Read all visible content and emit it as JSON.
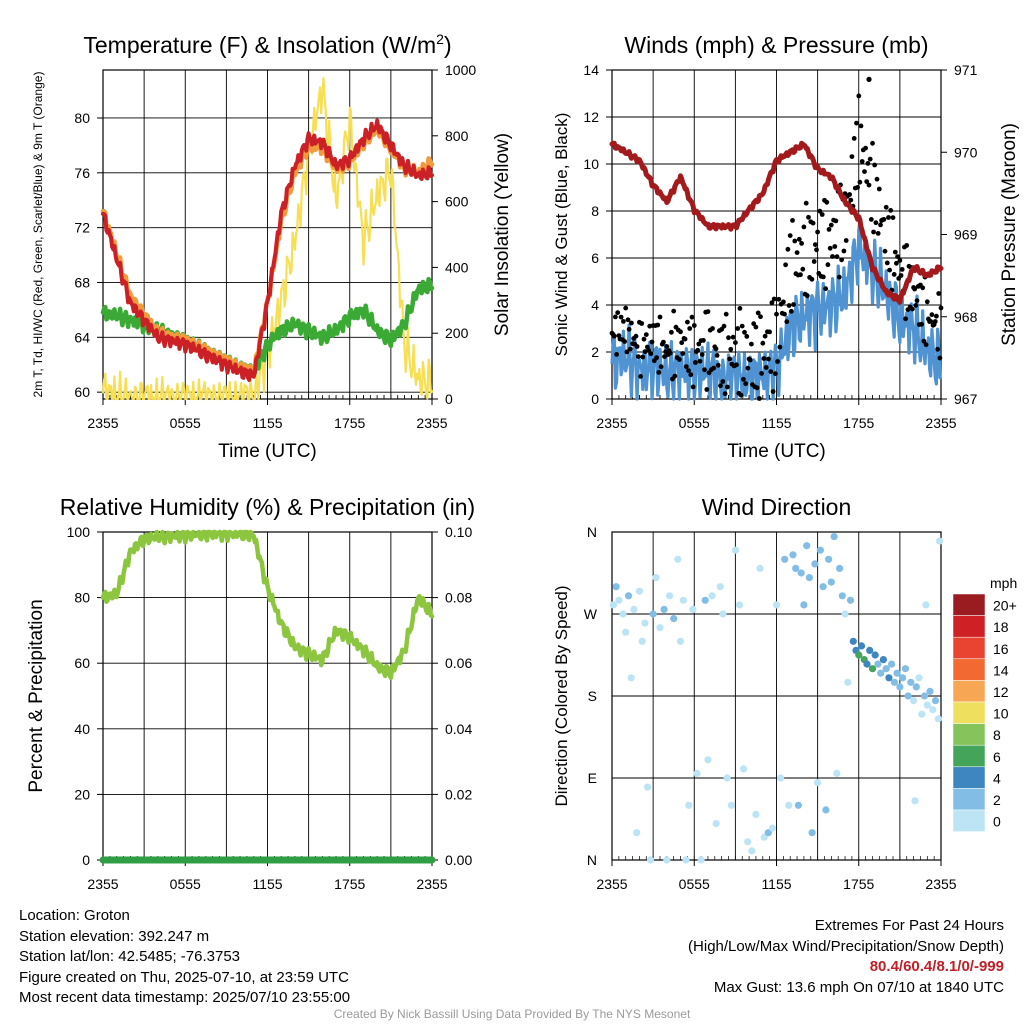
{
  "colors": {
    "temperature": "#cc2027",
    "dewpoint": "#3aaa35",
    "heat_index": "#f37021",
    "temperature_9m": "#f39a3c",
    "insolation": "#f7df55",
    "wind": "#4f93d2",
    "gust": "#000000",
    "pressure": "#a31a1d",
    "humidity": "#8cc63f",
    "precipitation": "#2f9e44",
    "extremes_text": "#c01f28",
    "credit_text": "#9a9a9a"
  },
  "chart_data": [
    {
      "type": "line",
      "title": "Temperature (F) & Insolation (W/m²)",
      "xlabel": "Time (UTC)",
      "ylabel_left": "2m T, Td, HI/WC (Red, Green, Scarlet/Blue) & 9m T (Orange)",
      "ylabel_right": "Solar Insolation (Yellow)",
      "x_ticks": [
        "2355",
        "0555",
        "1155",
        "1755",
        "2355"
      ],
      "y_ticks_left": [
        "60",
        "64",
        "68",
        "72",
        "76",
        "80"
      ],
      "y_ticks_right": [
        "0",
        "200",
        "400",
        "600",
        "800",
        "1000"
      ],
      "ylim_left": [
        59.5,
        83.5
      ],
      "ylim_right": [
        0,
        1000
      ],
      "grid": true,
      "x_hours": [
        0,
        2,
        4,
        6,
        8,
        10,
        11,
        12,
        13,
        14,
        15,
        16,
        17,
        18,
        19,
        20,
        21,
        22,
        23,
        24
      ],
      "series": [
        {
          "key": "temp_2m",
          "axis": "left",
          "values": [
            73,
            66.5,
            64,
            63.5,
            62.5,
            61.5,
            61.2,
            66.5,
            73,
            76.5,
            78.5,
            78.2,
            76.5,
            77,
            78.5,
            79.5,
            78,
            76.5,
            75.8,
            76
          ]
        },
        {
          "key": "temp_9m",
          "axis": "left",
          "values": [
            73.2,
            67,
            64.3,
            63.8,
            62.8,
            61.8,
            61.5,
            66.5,
            72.5,
            76,
            78,
            77.8,
            76.3,
            76.8,
            78.2,
            79.2,
            77.8,
            76.3,
            76,
            76.8
          ]
        },
        {
          "key": "dewpoint",
          "axis": "left",
          "values": [
            65.8,
            65.3,
            64.5,
            63.8,
            62.8,
            61.8,
            61.5,
            63.5,
            64.5,
            65,
            64.5,
            64,
            64.5,
            65.5,
            66,
            64.5,
            63.8,
            65,
            67.5,
            67.8
          ]
        },
        {
          "key": "insolation",
          "axis": "right",
          "values": [
            20,
            0,
            0,
            0,
            0,
            0,
            10,
            140,
            300,
            480,
            750,
            950,
            600,
            850,
            480,
            620,
            700,
            160,
            60,
            50
          ]
        }
      ]
    },
    {
      "type": "line",
      "title": "Winds (mph) & Pressure (mb)",
      "xlabel": "Time (UTC)",
      "ylabel_left": "Sonic Wind & Gust (Blue, Black)",
      "ylabel_right": "Station Pressure (Maroon)",
      "x_ticks": [
        "2355",
        "0555",
        "1155",
        "1755",
        "2355"
      ],
      "y_ticks_left": [
        "0",
        "2",
        "4",
        "6",
        "8",
        "10",
        "12",
        "14"
      ],
      "y_ticks_right": [
        "967",
        "968",
        "969",
        "970",
        "971"
      ],
      "ylim_left": [
        0,
        14
      ],
      "ylim_right": [
        967,
        971
      ],
      "grid": true,
      "x_hours": [
        0,
        1,
        2,
        3,
        4,
        5,
        6,
        7,
        8,
        9,
        10,
        11,
        12,
        13,
        14,
        15,
        16,
        17,
        18,
        19,
        20,
        21,
        22,
        23,
        24
      ],
      "series": [
        {
          "key": "wind",
          "axis": "left",
          "values": [
            1.5,
            1.8,
            1.2,
            1.5,
            1.0,
            1.3,
            1.1,
            1.2,
            0.8,
            1.0,
            0.8,
            1.0,
            1.3,
            3.0,
            3.5,
            3.8,
            4.0,
            4.5,
            6.5,
            5.5,
            4.5,
            3.5,
            3.0,
            2.0,
            1.5
          ]
        },
        {
          "key": "gust",
          "axis": "left",
          "values": [
            2.8,
            3.0,
            2.2,
            2.5,
            2.0,
            2.4,
            2.0,
            2.2,
            1.8,
            2.0,
            1.7,
            2.0,
            2.5,
            5.5,
            6.2,
            6.5,
            6.8,
            7.5,
            11.0,
            9.0,
            7.0,
            5.5,
            4.5,
            3.5,
            3.0
          ]
        },
        {
          "key": "pressure",
          "axis": "right",
          "values": [
            970.1,
            970.0,
            969.9,
            969.6,
            969.4,
            969.7,
            969.3,
            969.1,
            969.1,
            969.1,
            969.3,
            969.5,
            969.9,
            970.0,
            970.1,
            969.8,
            969.7,
            969.4,
            969.2,
            968.6,
            968.3,
            968.2,
            968.6,
            968.5,
            968.6
          ]
        }
      ],
      "max_gust_point": {
        "hour": 18.75,
        "value": 13.6
      }
    },
    {
      "type": "line",
      "title": "Relative Humidity (%) & Precipitation (in)",
      "ylabel": "Percent & Precipitation",
      "x_ticks": [
        "2355",
        "0555",
        "1155",
        "1755",
        "2355"
      ],
      "y_ticks_left": [
        "0",
        "20",
        "40",
        "60",
        "80",
        "100"
      ],
      "y_ticks_right": [
        "0.00",
        "0.02",
        "0.04",
        "0.06",
        "0.08",
        "0.10"
      ],
      "ylim_left": [
        0,
        100
      ],
      "ylim_right": [
        0,
        0.1
      ],
      "grid": true,
      "x_hours": [
        0,
        1,
        2,
        3,
        4,
        6,
        8,
        10,
        11,
        12,
        13,
        14,
        15,
        16,
        17,
        18,
        19,
        20,
        21,
        22,
        23,
        24
      ],
      "series": [
        {
          "key": "humidity",
          "axis": "left",
          "values": [
            80,
            81,
            94,
            98,
            98.5,
            99,
            99.5,
            99.5,
            99,
            83,
            72,
            65,
            63,
            61,
            70,
            68,
            64,
            59,
            57,
            64,
            80,
            75
          ]
        },
        {
          "key": "precipitation",
          "axis": "right",
          "values": [
            0,
            0,
            0,
            0,
            0,
            0,
            0,
            0,
            0,
            0,
            0,
            0,
            0,
            0,
            0,
            0,
            0,
            0,
            0,
            0,
            0,
            0
          ]
        }
      ]
    },
    {
      "type": "scatter",
      "title": "Wind Direction",
      "ylabel": "Direction (Colored By Speed)",
      "x_ticks": [
        "2355",
        "0555",
        "1155",
        "1755",
        "2355"
      ],
      "y_ticks": [
        "N",
        "E",
        "S",
        "W",
        "N"
      ],
      "ylim": [
        0,
        360
      ],
      "grid": true,
      "legend": {
        "title": "mph",
        "labels": [
          "20+",
          "18",
          "16",
          "14",
          "12",
          "10",
          "8",
          "6",
          "4",
          "2",
          "0"
        ],
        "colors": [
          "#9b1c20",
          "#cf2026",
          "#e94432",
          "#f26a32",
          "#f7a653",
          "#eee05e",
          "#86c35a",
          "#43a45a",
          "#3e86c0",
          "#82bde6",
          "#bde4f5"
        ],
        "placement": "right"
      },
      "points": [
        {
          "h": 0.1,
          "d": 280,
          "s": 1.5
        },
        {
          "h": 0.3,
          "d": 300,
          "s": 2.5
        },
        {
          "h": 0.5,
          "d": 285,
          "s": 1.8
        },
        {
          "h": 0.8,
          "d": 270,
          "s": 1
        },
        {
          "h": 1,
          "d": 250,
          "s": 0.8
        },
        {
          "h": 1.2,
          "d": 290,
          "s": 2
        },
        {
          "h": 1.4,
          "d": 200,
          "s": 0.5
        },
        {
          "h": 1.6,
          "d": 275,
          "s": 1.2
        },
        {
          "h": 1.8,
          "d": 30,
          "s": 0.6
        },
        {
          "h": 2,
          "d": 295,
          "s": 1.5
        },
        {
          "h": 2.2,
          "d": 240,
          "s": 1
        },
        {
          "h": 2.4,
          "d": 260,
          "s": 1.8
        },
        {
          "h": 2.6,
          "d": 80,
          "s": 1.5
        },
        {
          "h": 2.8,
          "d": 0,
          "s": 0.5
        },
        {
          "h": 3,
          "d": 270,
          "s": 2.2
        },
        {
          "h": 3.2,
          "d": 310,
          "s": 1
        },
        {
          "h": 3.5,
          "d": 255,
          "s": 1.3
        },
        {
          "h": 3.8,
          "d": 275,
          "s": 2.5
        },
        {
          "h": 4,
          "d": 0,
          "s": 0.8
        },
        {
          "h": 4.2,
          "d": 290,
          "s": 1.6
        },
        {
          "h": 4.5,
          "d": 265,
          "s": 2
        },
        {
          "h": 4.8,
          "d": 330,
          "s": 0.4
        },
        {
          "h": 5,
          "d": 240,
          "s": 0.9
        },
        {
          "h": 5.2,
          "d": 285,
          "s": 1.7
        },
        {
          "h": 5.4,
          "d": 0,
          "s": 0.6
        },
        {
          "h": 5.6,
          "d": 60,
          "s": 1
        },
        {
          "h": 5.9,
          "d": 275,
          "s": 1.3
        },
        {
          "h": 6.2,
          "d": 95,
          "s": 0.7
        },
        {
          "h": 6.5,
          "d": 0,
          "s": 1
        },
        {
          "h": 6.8,
          "d": 285,
          "s": 2.5
        },
        {
          "h": 7,
          "d": 110,
          "s": 1
        },
        {
          "h": 7.3,
          "d": 290,
          "s": 1.5
        },
        {
          "h": 7.6,
          "d": 40,
          "s": 0.8
        },
        {
          "h": 7.9,
          "d": 300,
          "s": 1.1
        },
        {
          "h": 8.1,
          "d": 270,
          "s": 1.6
        },
        {
          "h": 8.4,
          "d": 90,
          "s": 1.2
        },
        {
          "h": 8.7,
          "d": 60,
          "s": 0.5
        },
        {
          "h": 9,
          "d": 340,
          "s": 0.6
        },
        {
          "h": 9.3,
          "d": 280,
          "s": 1.2
        },
        {
          "h": 9.6,
          "d": 100,
          "s": 1.4
        },
        {
          "h": 9.9,
          "d": 20,
          "s": 1.2
        },
        {
          "h": 10.2,
          "d": 10,
          "s": 0.5
        },
        {
          "h": 10.5,
          "d": 50,
          "s": 1.3
        },
        {
          "h": 10.8,
          "d": 320,
          "s": 0.7
        },
        {
          "h": 11.1,
          "d": 25,
          "s": 1
        },
        {
          "h": 11.4,
          "d": 30,
          "s": 2.3
        },
        {
          "h": 11.7,
          "d": 35,
          "s": 1.2
        },
        {
          "h": 12,
          "d": 280,
          "s": 1.5
        },
        {
          "h": 12.3,
          "d": 90,
          "s": 1.4
        },
        {
          "h": 12.6,
          "d": 330,
          "s": 2
        },
        {
          "h": 12.9,
          "d": 60,
          "s": 1.1
        },
        {
          "h": 13.2,
          "d": 335,
          "s": 3.2
        },
        {
          "h": 13.4,
          "d": 320,
          "s": 2.8
        },
        {
          "h": 13.6,
          "d": 60,
          "s": 2.5
        },
        {
          "h": 13.8,
          "d": 315,
          "s": 3.5
        },
        {
          "h": 14,
          "d": 280,
          "s": 2.1
        },
        {
          "h": 14.2,
          "d": 345,
          "s": 3.3
        },
        {
          "h": 14.4,
          "d": 310,
          "s": 2.9
        },
        {
          "h": 14.6,
          "d": 30,
          "s": 2.4
        },
        {
          "h": 14.8,
          "d": 325,
          "s": 3.6
        },
        {
          "h": 15,
          "d": 85,
          "s": 1.2
        },
        {
          "h": 15.2,
          "d": 340,
          "s": 3
        },
        {
          "h": 15.4,
          "d": 300,
          "s": 2.3
        },
        {
          "h": 15.6,
          "d": 55,
          "s": 2.5
        },
        {
          "h": 15.8,
          "d": 330,
          "s": 3.4
        },
        {
          "h": 16,
          "d": 305,
          "s": 2.7
        },
        {
          "h": 16.2,
          "d": 355,
          "s": 2.9
        },
        {
          "h": 16.4,
          "d": 95,
          "s": 1.8
        },
        {
          "h": 16.6,
          "d": 320,
          "s": 3.3
        },
        {
          "h": 16.8,
          "d": 290,
          "s": 2.6
        },
        {
          "h": 17,
          "d": 270,
          "s": 1
        },
        {
          "h": 17.2,
          "d": 195,
          "s": 0.8
        },
        {
          "h": 17.4,
          "d": 285,
          "s": 2.5
        },
        {
          "h": 17.6,
          "d": 240,
          "s": 4.5
        },
        {
          "h": 17.8,
          "d": 230,
          "s": 5.5
        },
        {
          "h": 18,
          "d": 225,
          "s": 6.5
        },
        {
          "h": 18.2,
          "d": 235,
          "s": 5.8
        },
        {
          "h": 18.4,
          "d": 220,
          "s": 7
        },
        {
          "h": 18.6,
          "d": 215,
          "s": 5
        },
        {
          "h": 18.8,
          "d": 230,
          "s": 4.2
        },
        {
          "h": 19,
          "d": 210,
          "s": 6.2
        },
        {
          "h": 19.2,
          "d": 225,
          "s": 4.8
        },
        {
          "h": 19.4,
          "d": 215,
          "s": 3.8
        },
        {
          "h": 19.6,
          "d": 205,
          "s": 3.5
        },
        {
          "h": 19.8,
          "d": 220,
          "s": 4
        },
        {
          "h": 20,
          "d": 210,
          "s": 3.2
        },
        {
          "h": 20.2,
          "d": 200,
          "s": 4.1
        },
        {
          "h": 20.4,
          "d": 215,
          "s": 3.6
        },
        {
          "h": 20.6,
          "d": 195,
          "s": 2.8
        },
        {
          "h": 20.8,
          "d": 205,
          "s": 3.3
        },
        {
          "h": 21,
          "d": 190,
          "s": 2.6
        },
        {
          "h": 21.2,
          "d": 200,
          "s": 3.7
        },
        {
          "h": 21.4,
          "d": 210,
          "s": 2.9
        },
        {
          "h": 21.6,
          "d": 180,
          "s": 2.2
        },
        {
          "h": 21.8,
          "d": 195,
          "s": 3
        },
        {
          "h": 22,
          "d": 175,
          "s": 1.9
        },
        {
          "h": 22.2,
          "d": 190,
          "s": 2.5
        },
        {
          "h": 22.4,
          "d": 200,
          "s": 1.8
        },
        {
          "h": 22.6,
          "d": 160,
          "s": 1.5
        },
        {
          "h": 22.8,
          "d": 180,
          "s": 2.6
        },
        {
          "h": 23,
          "d": 170,
          "s": 1.7
        },
        {
          "h": 23.2,
          "d": 185,
          "s": 2.4
        },
        {
          "h": 23.4,
          "d": 165,
          "s": 1.2
        },
        {
          "h": 23.6,
          "d": 175,
          "s": 2
        },
        {
          "h": 23.8,
          "d": 155,
          "s": 1.6
        },
        {
          "h": 22.1,
          "d": 65,
          "s": 1
        },
        {
          "h": 22.9,
          "d": 280,
          "s": 0.6
        },
        {
          "h": 23.9,
          "d": 350,
          "s": 1.3
        }
      ]
    }
  ],
  "info": {
    "location": "Location: Groton",
    "elevation": "Station elevation: 392.247 m",
    "latlon": "Station lat/lon: 42.5485; -76.3753",
    "created": "Figure created on Thu, 2025-07-10, at 23:59 UTC",
    "recent": "Most recent data timestamp: 2025/07/10 23:55:00"
  },
  "extremes": {
    "title": "Extremes For Past 24 Hours",
    "subtitle": "(High/Low/Max Wind/Precipitation/Snow Depth)",
    "values": "80.4/60.4/8.1/0/-999",
    "max_gust": "Max Gust: 13.6 mph On 07/10 at 1840 UTC"
  },
  "credit": "Created By Nick Bassill Using Data Provided By The NYS Mesonet"
}
